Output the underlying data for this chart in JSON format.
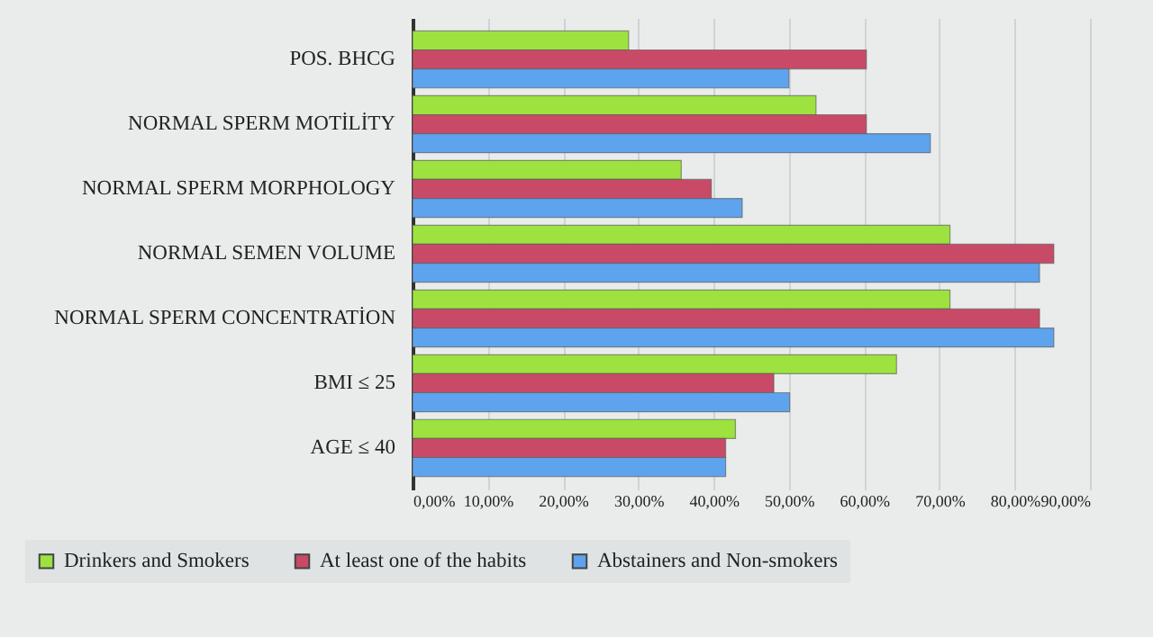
{
  "chart_data": {
    "type": "bar",
    "orientation": "horizontal",
    "categories": [
      "POS. BHCG",
      "NORMAL SPERM MOTİLİTY",
      "NORMAL SPERM MORPHOLOGY",
      "NORMAL SEMEN VOLUME",
      "NORMAL SPERM CONCENTRATİON",
      "BMI ≤ 25",
      "AGE ≤ 40"
    ],
    "series": [
      {
        "name": "Drinkers and Smokers",
        "color": "#9de23f",
        "values": [
          28.7,
          53.6,
          35.7,
          71.4,
          71.4,
          64.3,
          42.9
        ]
      },
      {
        "name": "At least one of the habits",
        "color": "#c94a66",
        "values": [
          60.3,
          60.3,
          39.7,
          85.2,
          83.3,
          48.0,
          41.6
        ]
      },
      {
        "name": "Abstainers and Non-smokers",
        "color": "#5ea3ee",
        "values": [
          50.0,
          68.8,
          43.8,
          83.3,
          85.2,
          50.1,
          41.6
        ]
      }
    ],
    "xlim": [
      0,
      90
    ],
    "xticks": [
      {
        "value": 0,
        "label": "0,00%"
      },
      {
        "value": 10,
        "label": "10,00%"
      },
      {
        "value": 20,
        "label": "20,00%"
      },
      {
        "value": 30,
        "label": "30,00%"
      },
      {
        "value": 40,
        "label": "40,00%"
      },
      {
        "value": 50,
        "label": "50,00%"
      },
      {
        "value": 60,
        "label": "60,00%"
      },
      {
        "value": 70,
        "label": "70,00%"
      },
      {
        "value": 80,
        "label": "80,00%"
      },
      {
        "value": 90,
        "label": "90,00%"
      }
    ],
    "grid": "x",
    "legend": "bottom"
  }
}
